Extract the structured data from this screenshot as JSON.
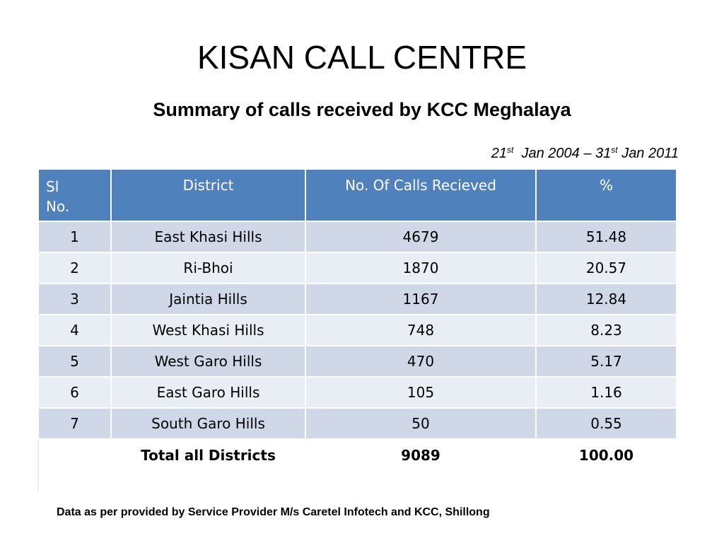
{
  "slide": {
    "title": "KISAN CALL CENTRE",
    "subtitle": "Summary of calls received by KCC Meghalaya",
    "date_range": {
      "start_day": "21",
      "start_sup": "st",
      "start_rest": "Jan 2004 – 31",
      "end_sup": "st",
      "end_rest": "Jan 2011"
    },
    "footer": "Data as per provided by Service Provider M/s Caretel  Infotech and KCC, Shillong"
  },
  "table": {
    "headers": {
      "sl_line1": "Sl",
      "sl_line2": "No.",
      "district": "District",
      "calls": "No. Of Calls Recieved",
      "percent": "%"
    },
    "rows": [
      [
        "1",
        "East Khasi Hills",
        "4679",
        "51.48"
      ],
      [
        "2",
        "Ri-Bhoi",
        "1870",
        "20.57"
      ],
      [
        "3",
        "Jaintia Hills",
        "1167",
        "12.84"
      ],
      [
        "4",
        "West Khasi Hills",
        "748",
        "8.23"
      ],
      [
        "5",
        "West Garo Hills",
        "470",
        "5.17"
      ],
      [
        "6",
        "East Garo Hills",
        "105",
        "1.16"
      ],
      [
        "7",
        "South Garo Hills",
        "50",
        "0.55"
      ]
    ],
    "total": [
      "",
      "Total  all Districts",
      "9089",
      "100.00"
    ]
  },
  "colors": {
    "header_bg": "#4f81bd",
    "row_odd": "#d0d8e8",
    "row_even": "#e9edf4"
  }
}
